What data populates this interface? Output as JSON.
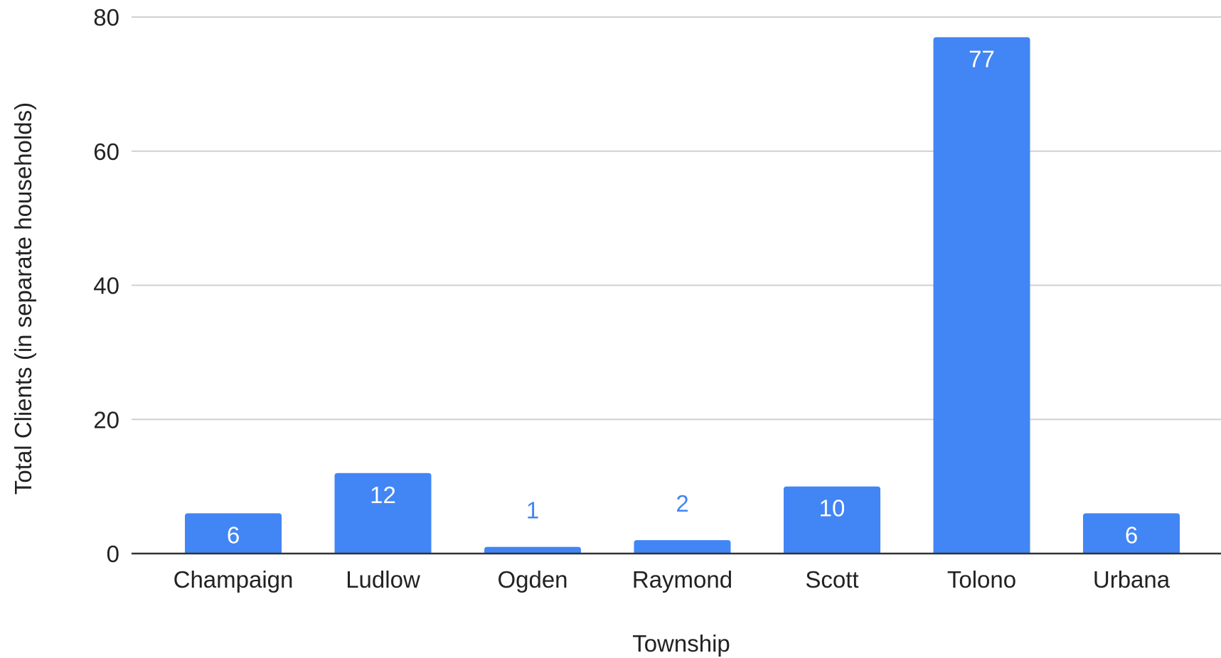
{
  "chart_data": {
    "type": "bar",
    "title": "",
    "xlabel": "Township",
    "ylabel": "Total Clients (in separate households)",
    "categories": [
      "Champaign",
      "Ludlow",
      "Ogden",
      "Raymond",
      "Scott",
      "Tolono",
      "Urbana"
    ],
    "values": [
      6,
      12,
      1,
      2,
      10,
      77,
      6
    ],
    "data_labels": [
      "6",
      "12",
      "1",
      "2",
      "10",
      "77",
      "6"
    ],
    "yticks": [
      "0",
      "20",
      "40",
      "60",
      "80"
    ],
    "ylim": [
      0,
      80
    ],
    "grid": true,
    "legend": "none",
    "colors": {
      "bar": "#4285f4",
      "label_inside": "#ffffff",
      "label_outside": "#4285f4",
      "grid": "#d0d0d0",
      "baseline": "#333333",
      "text": "#222222"
    }
  }
}
